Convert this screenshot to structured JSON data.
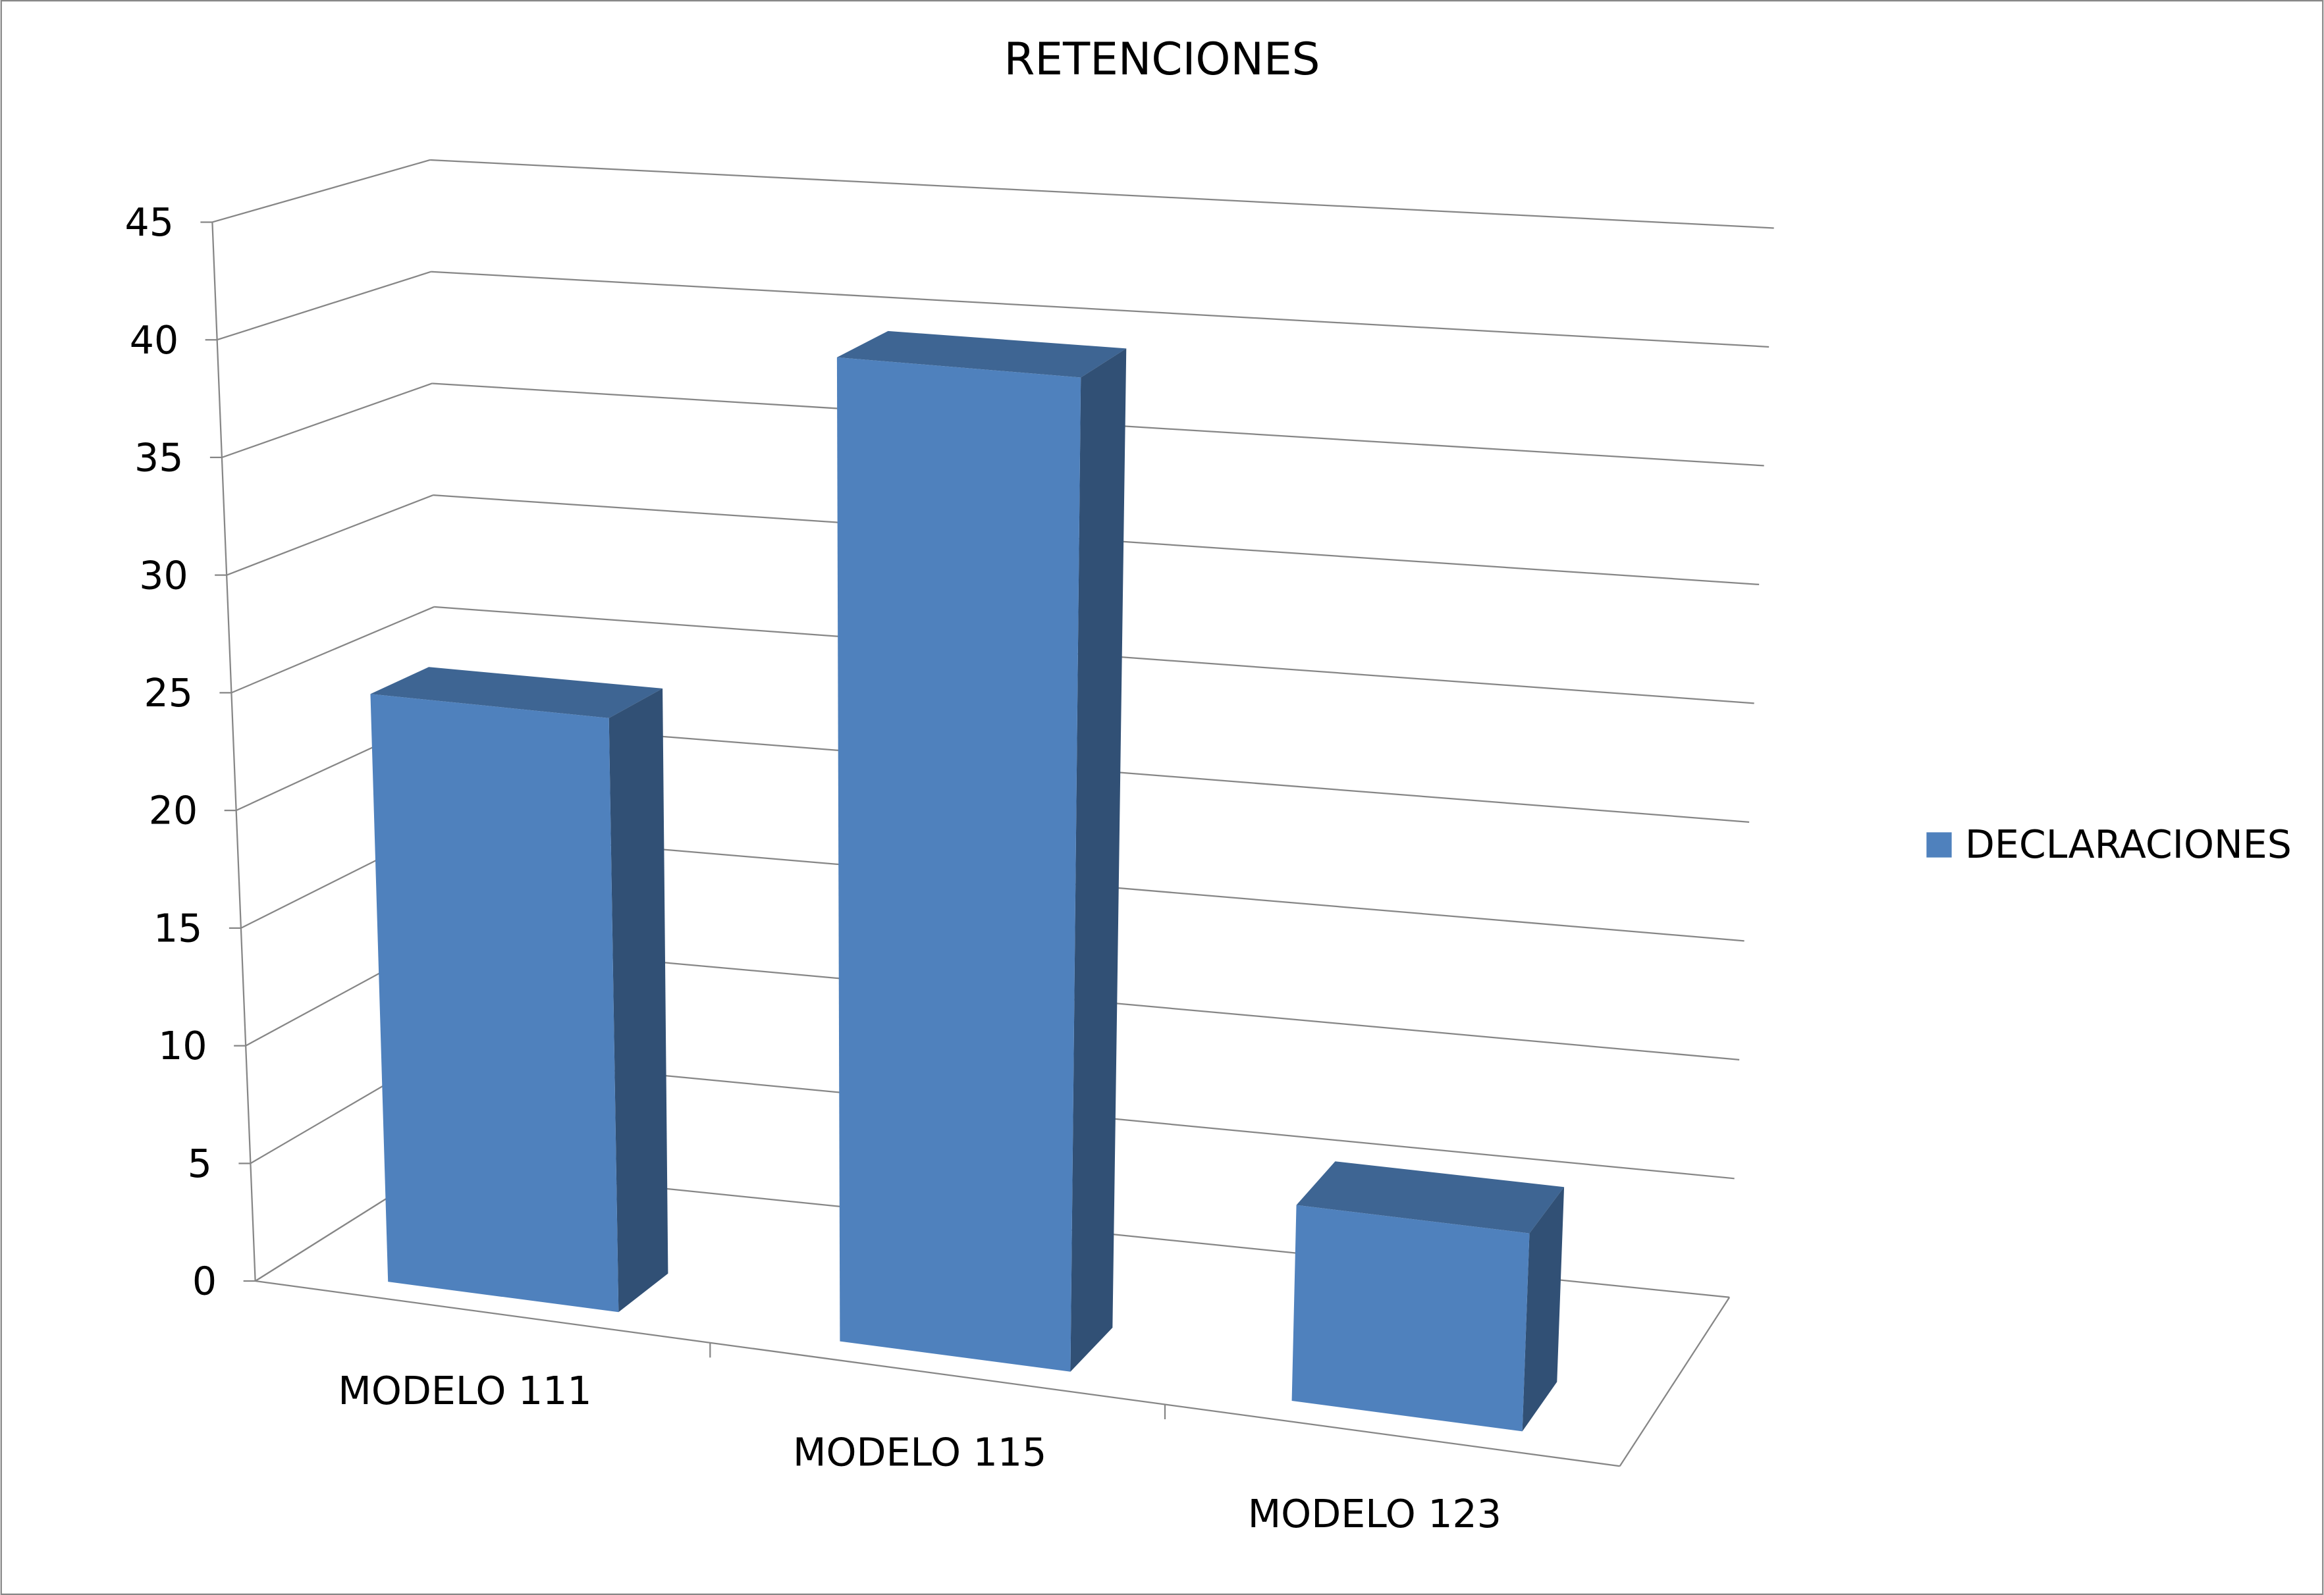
{
  "chart_data": {
    "type": "bar",
    "title": "RETENCIONES",
    "categories": [
      "MODELO 111",
      "MODELO 115",
      "MODELO 123"
    ],
    "series": [
      {
        "name": "DECLARACIONES",
        "color": "#4f81bd",
        "values": [
          25,
          41,
          8
        ]
      }
    ],
    "ylim": [
      0,
      45
    ],
    "yticks": [
      0,
      5,
      10,
      15,
      20,
      25,
      30,
      35,
      40,
      45
    ],
    "grid": true,
    "legend": "right"
  }
}
